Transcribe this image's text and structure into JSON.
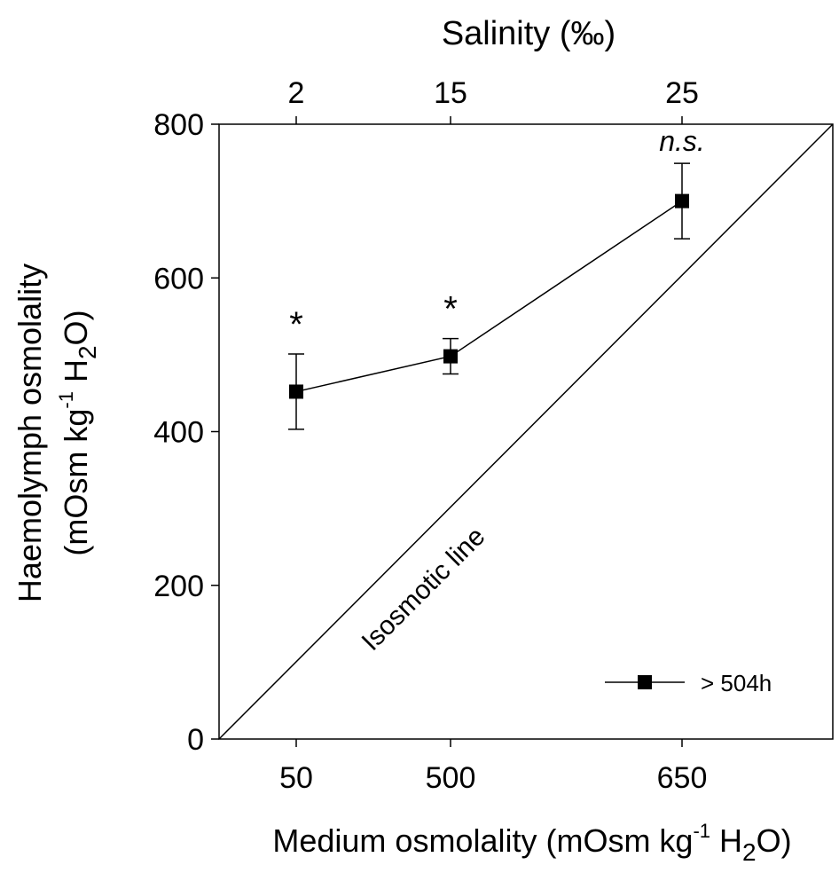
{
  "chart_data": {
    "type": "line",
    "top_axis_label": "Salinity (‰)",
    "top_tick_labels": [
      "2",
      "15",
      "25"
    ],
    "xlabel_main": "Medium osmolality (mOsm kg",
    "xlabel_sup": "-1",
    "xlabel_h": " H",
    "xlabel_sub": "2",
    "xlabel_end": "O)",
    "ylabel_line1": "Haemolymph osmolality",
    "ylabel_line2_main": "(mOsm kg",
    "ylabel_line2_sup": "-1",
    "ylabel_line2_h": " H",
    "ylabel_line2_sub": "2",
    "ylabel_line2_end": "O)",
    "x_tick_labels": [
      "50",
      "500",
      "650"
    ],
    "y_ticks": [
      0,
      200,
      400,
      600,
      800
    ],
    "ylim": [
      0,
      800
    ],
    "series": [
      {
        "name": "> 504h",
        "points": [
          {
            "x_label": "50",
            "y": 452,
            "err": 49,
            "annotation": "*"
          },
          {
            "x_label": "500",
            "y": 498,
            "err": 23,
            "annotation": "*"
          },
          {
            "x_label": "650",
            "y": 700,
            "err": 49,
            "annotation": "n.s."
          }
        ]
      }
    ],
    "reference_line_label": "Isosmotic line",
    "legend_position": "bottom-right",
    "grid": false
  }
}
